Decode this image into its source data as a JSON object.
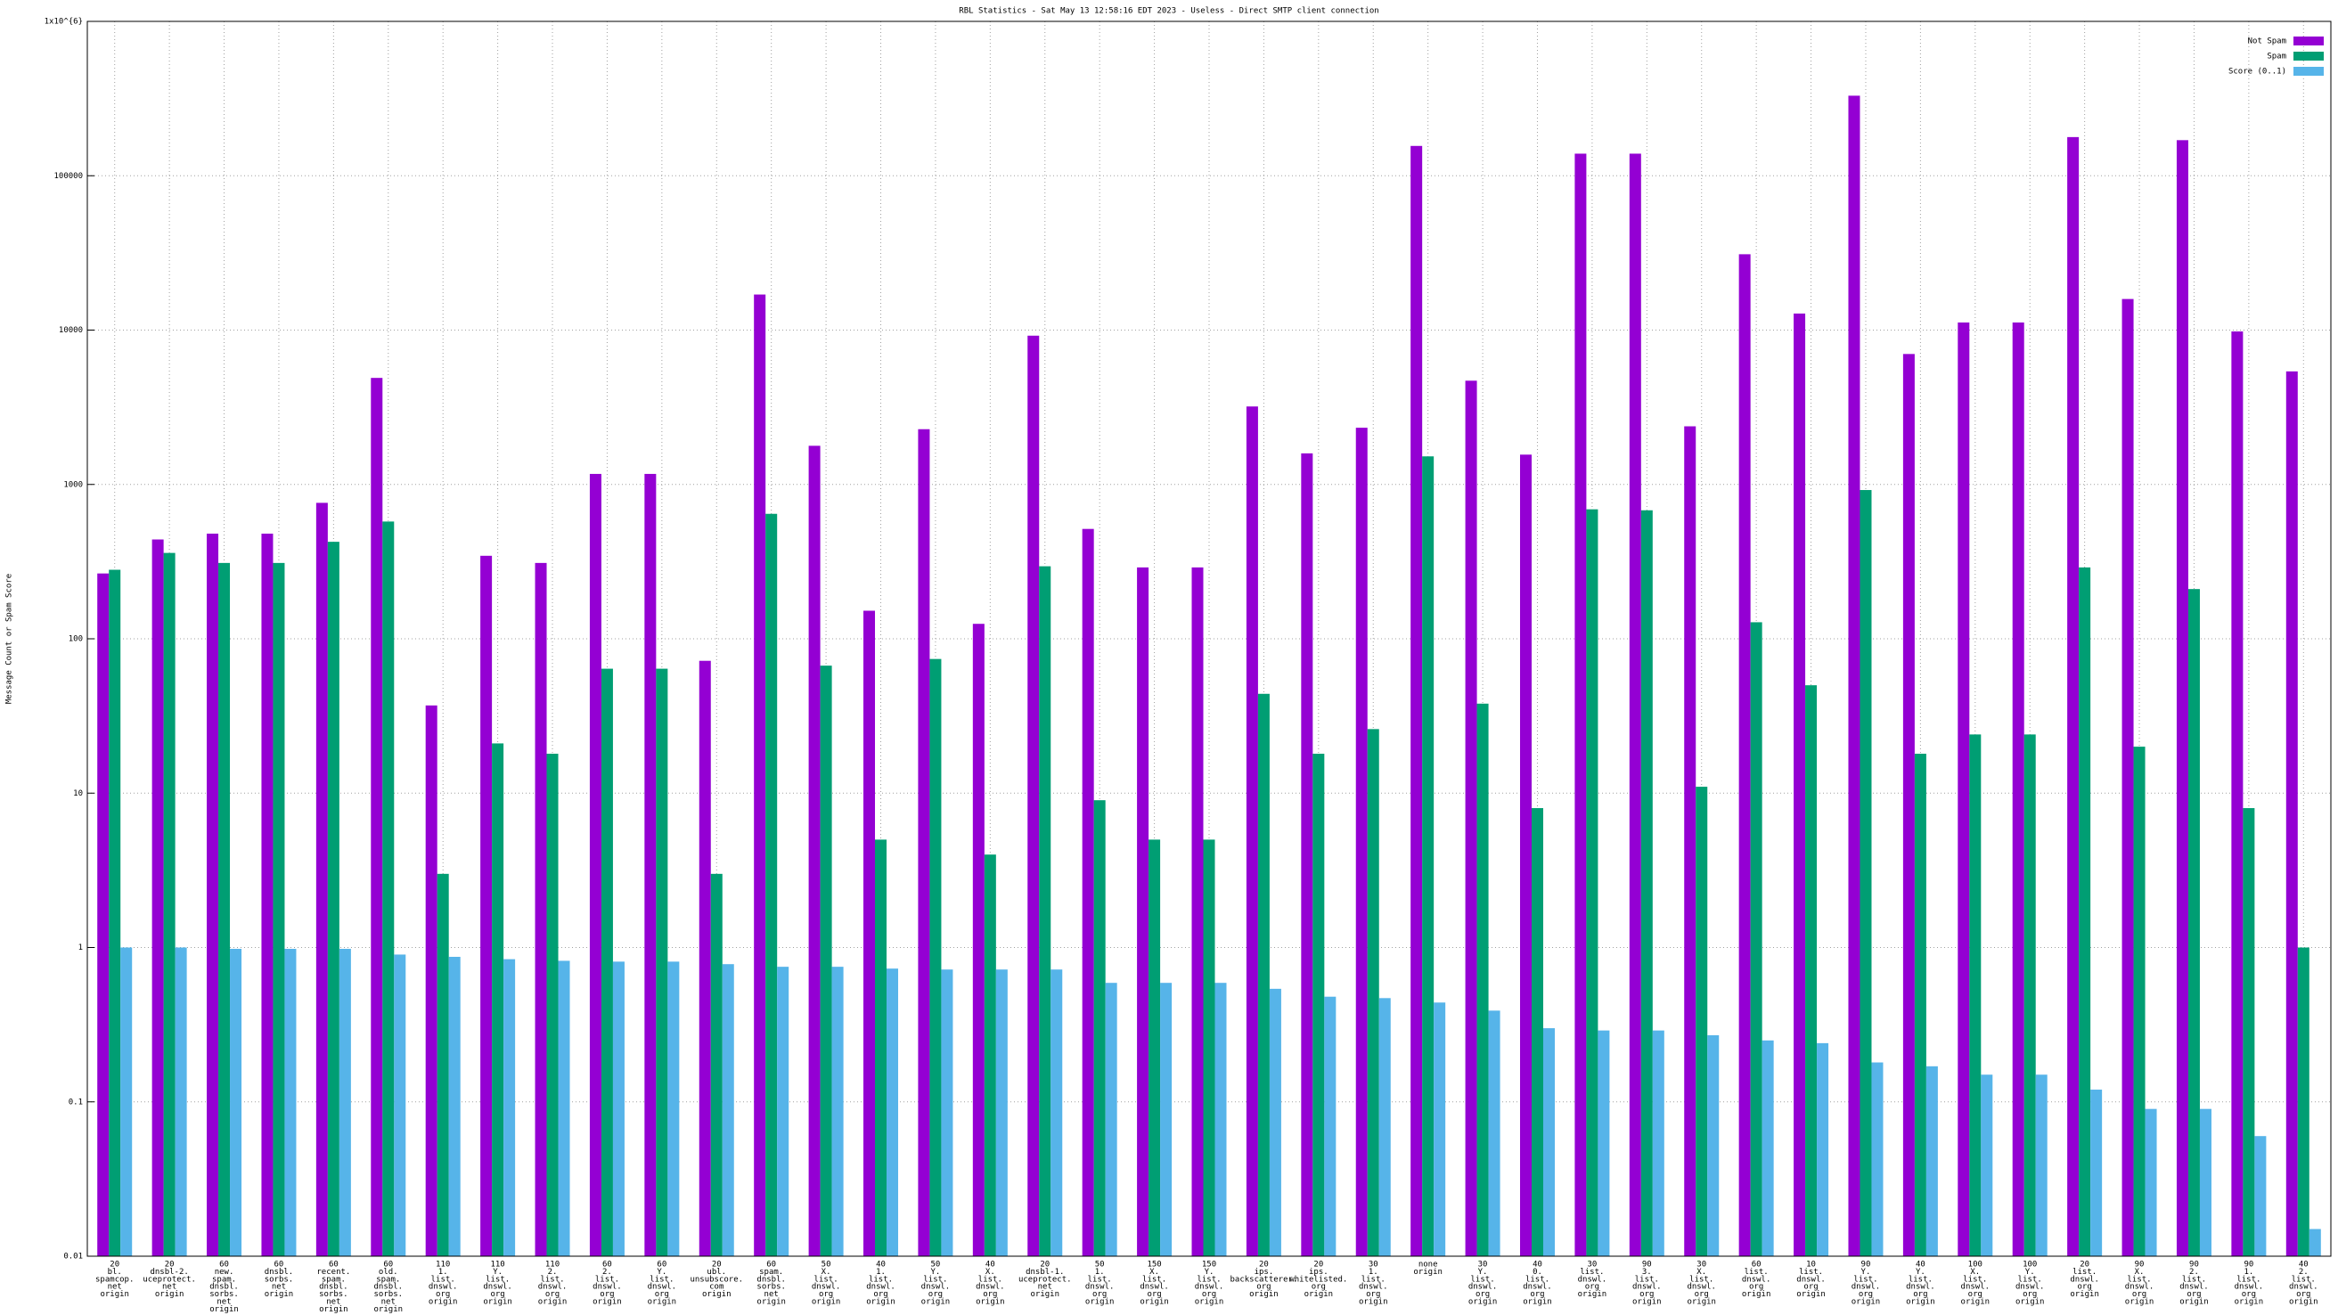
{
  "chart_data": {
    "type": "bar",
    "title": "RBL Statistics - Sat May 13 12:58:16 EDT 2023 - Useless - Direct SMTP client connection",
    "y_label": "Message Count or Spam Score",
    "categories": [
      [
        "20",
        "bl.",
        "spamcop.",
        "net",
        "origin"
      ],
      [
        "20",
        "dnsbl-2.",
        "uceprotect.",
        "net",
        "origin"
      ],
      [
        "60",
        "new.",
        "spam.",
        "dnsbl.",
        "sorbs.",
        "net",
        "origin"
      ],
      [
        "60",
        "dnsbl.",
        "sorbs.",
        "net",
        "origin"
      ],
      [
        "60",
        "recent.",
        "spam.",
        "dnsbl.",
        "sorbs.",
        "net",
        "origin"
      ],
      [
        "60",
        "old.",
        "spam.",
        "dnsbl.",
        "sorbs.",
        "net",
        "origin"
      ],
      [
        "110",
        "1.",
        "list.",
        "dnswl.",
        "org",
        "origin"
      ],
      [
        "110",
        "Y.",
        "list.",
        "dnswl.",
        "org",
        "origin"
      ],
      [
        "110",
        "2.",
        "list.",
        "dnswl.",
        "org",
        "origin"
      ],
      [
        "60",
        "2.",
        "list.",
        "dnswl.",
        "org",
        "origin"
      ],
      [
        "60",
        "Y.",
        "list.",
        "dnswl.",
        "org",
        "origin"
      ],
      [
        "20",
        "ubl.",
        "unsubscore.",
        "com",
        "origin"
      ],
      [
        "60",
        "spam.",
        "dnsbl.",
        "sorbs.",
        "net",
        "origin"
      ],
      [
        "50",
        "X.",
        "list.",
        "dnswl.",
        "org",
        "origin"
      ],
      [
        "40",
        "1.",
        "list.",
        "dnswl.",
        "org",
        "origin"
      ],
      [
        "50",
        "Y.",
        "list.",
        "dnswl.",
        "org",
        "origin"
      ],
      [
        "40",
        "X.",
        "list.",
        "dnswl.",
        "org",
        "origin"
      ],
      [
        "20",
        "dnsbl-1.",
        "uceprotect.",
        "net",
        "origin"
      ],
      [
        "50",
        "1.",
        "list.",
        "dnswl.",
        "org",
        "origin"
      ],
      [
        "150",
        "X.",
        "list.",
        "dnswl.",
        "org",
        "origin"
      ],
      [
        "150",
        "Y.",
        "list.",
        "dnswl.",
        "org",
        "origin"
      ],
      [
        "20",
        "ips.",
        "backscatterer.",
        "org",
        "origin"
      ],
      [
        "20",
        "ips.",
        "whitelisted.",
        "org",
        "origin"
      ],
      [
        "30",
        "1.",
        "list.",
        "dnswl.",
        "org",
        "origin"
      ],
      [
        "none",
        "origin"
      ],
      [
        "30",
        "Y.",
        "list.",
        "dnswl.",
        "org",
        "origin"
      ],
      [
        "40",
        "0.",
        "list.",
        "dnswl.",
        "org",
        "origin"
      ],
      [
        "30",
        "list.",
        "dnswl.",
        "org",
        "origin"
      ],
      [
        "90",
        "3.",
        "list.",
        "dnswl.",
        "org",
        "origin"
      ],
      [
        "30",
        "X.",
        "list.",
        "dnswl.",
        "org",
        "origin"
      ],
      [
        "60",
        "list.",
        "dnswl.",
        "org",
        "origin"
      ],
      [
        "10",
        "list.",
        "dnswl.",
        "org",
        "origin"
      ],
      [
        "90",
        "Y.",
        "list.",
        "dnswl.",
        "org",
        "origin"
      ],
      [
        "40",
        "Y.",
        "list.",
        "dnswl.",
        "org",
        "origin"
      ],
      [
        "100",
        "X.",
        "list.",
        "dnswl.",
        "org",
        "origin"
      ],
      [
        "100",
        "Y.",
        "list.",
        "dnswl.",
        "org",
        "origin"
      ],
      [
        "20",
        "list.",
        "dnswl.",
        "org",
        "origin"
      ],
      [
        "90",
        "X.",
        "list.",
        "dnswl.",
        "org",
        "origin"
      ],
      [
        "90",
        "2.",
        "list.",
        "dnswl.",
        "org",
        "origin"
      ],
      [
        "90",
        "1.",
        "list.",
        "dnswl.",
        "org",
        "origin"
      ],
      [
        "40",
        "2.",
        "list.",
        "dnswl.",
        "org",
        "origin"
      ]
    ],
    "series": [
      {
        "name": "Not Spam",
        "color": "#9400d3",
        "values": [
          265,
          440,
          480,
          480,
          760,
          4900,
          37,
          345,
          310,
          1170,
          1170,
          72,
          17000,
          1780,
          152,
          2280,
          125,
          9200,
          515,
          290,
          290,
          3200,
          1590,
          2330,
          156000,
          4700,
          1560,
          139000,
          139000,
          2380,
          31000,
          12800,
          330000,
          7000,
          11200,
          11200,
          178000,
          15900,
          170000,
          9800,
          5400
        ]
      },
      {
        "name": "Spam",
        "color": "#009e73",
        "values": [
          280,
          360,
          310,
          310,
          425,
          575,
          3,
          21,
          18,
          64,
          64,
          3,
          645,
          67,
          5,
          74,
          4,
          295,
          9,
          5,
          5,
          44,
          18,
          26,
          1520,
          38,
          8,
          690,
          680,
          11,
          128,
          50,
          920,
          18,
          24,
          24,
          290,
          20,
          210,
          8,
          1
        ]
      },
      {
        "name": "Score (0..1)",
        "color": "#56b4e9",
        "values": [
          1,
          1,
          0.98,
          0.98,
          0.98,
          0.9,
          0.87,
          0.84,
          0.82,
          0.81,
          0.81,
          0.78,
          0.75,
          0.75,
          0.73,
          0.72,
          0.72,
          0.72,
          0.59,
          0.59,
          0.59,
          0.54,
          0.48,
          0.47,
          0.44,
          0.39,
          0.3,
          0.29,
          0.29,
          0.27,
          0.25,
          0.24,
          0.18,
          0.17,
          0.15,
          0.15,
          0.12,
          0.09,
          0.09,
          0.06,
          0.015
        ]
      }
    ],
    "ylim": [
      0.01,
      1000000
    ],
    "yticks": [
      0.01,
      0.1,
      1,
      10,
      100,
      1000,
      10000,
      100000,
      {
        "value": 1000000,
        "label": "1x10^{6}"
      }
    ],
    "ylog": true,
    "grid": true,
    "legend": "top right"
  }
}
